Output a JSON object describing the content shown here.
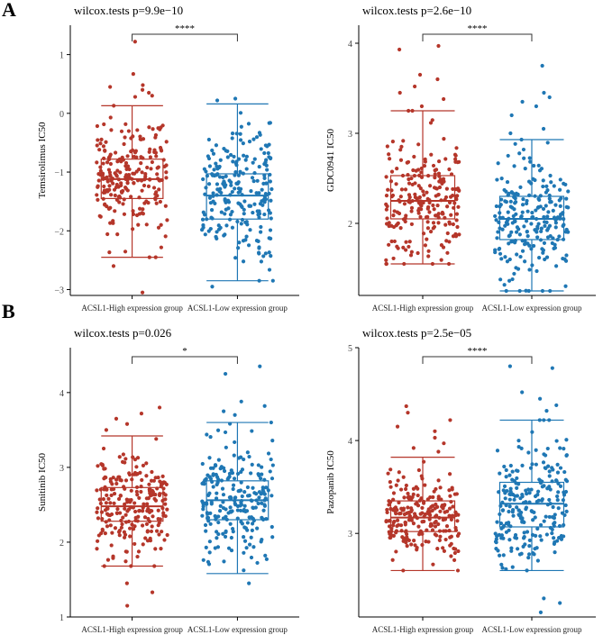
{
  "panel_letters": [
    "A",
    "B"
  ],
  "colors": {
    "high": "#B5362A",
    "low": "#1F77B4",
    "axis": "#000000"
  },
  "chart_data": [
    {
      "type": "box",
      "panel": "A",
      "title": "wilcox.tests p=9.9e−10",
      "ylabel": "Temsirolimus IC50",
      "significance": "****",
      "categories": [
        "ACSL1-High expression group",
        "ACSL1-Low expression group"
      ],
      "ylim": [
        -3.1,
        1.5
      ],
      "yticks": [
        -3,
        -2,
        -1,
        0,
        1
      ],
      "boxes": [
        {
          "min": -2.45,
          "q1": -1.45,
          "median": -1.12,
          "q3": -0.78,
          "max": 0.13
        },
        {
          "min": -2.85,
          "q1": -1.8,
          "median": -1.4,
          "q3": -1.03,
          "max": 0.16
        }
      ],
      "outliers": [
        [
          1.22,
          0.67,
          0.48,
          0.45,
          0.4,
          0.35,
          0.3,
          0.28,
          -2.6,
          -3.05
        ],
        [
          0.25,
          0.22,
          -2.95
        ]
      ]
    },
    {
      "type": "box",
      "panel": "A",
      "title": "wilcox.tests p=2.6e−10",
      "ylabel": "GDC0941 IC50",
      "significance": "****",
      "categories": [
        "ACSL1-High expression group",
        "ACSL1-Low expression group"
      ],
      "ylim": [
        1.2,
        4.2
      ],
      "yticks": [
        2,
        3,
        4
      ],
      "boxes": [
        {
          "min": 1.55,
          "q1": 2.05,
          "median": 2.25,
          "q3": 2.53,
          "max": 3.25
        },
        {
          "min": 1.25,
          "q1": 1.82,
          "median": 2.05,
          "q3": 2.3,
          "max": 2.93
        }
      ],
      "outliers": [
        [
          3.97,
          3.93,
          3.65,
          3.6,
          3.52,
          3.45,
          3.38,
          3.3
        ],
        [
          3.75,
          3.45,
          3.4,
          3.35,
          3.3,
          3.2,
          3.05,
          3.0
        ]
      ]
    },
    {
      "type": "box",
      "panel": "B",
      "title": "wilcox.tests p=0.026",
      "ylabel": "Sunitinib IC50",
      "significance": "*",
      "categories": [
        "ACSL1-High expression group",
        "ACSL1-Low expression group"
      ],
      "ylim": [
        1.0,
        4.6
      ],
      "yticks": [
        1,
        2,
        3,
        4
      ],
      "boxes": [
        {
          "min": 1.68,
          "q1": 2.28,
          "median": 2.48,
          "q3": 2.73,
          "max": 3.42
        },
        {
          "min": 1.58,
          "q1": 2.3,
          "median": 2.56,
          "q3": 2.82,
          "max": 3.6
        }
      ],
      "outliers": [
        [
          3.8,
          3.72,
          3.65,
          3.58,
          3.5,
          1.45,
          1.33,
          1.15
        ],
        [
          4.35,
          4.25,
          3.88,
          3.82,
          3.75,
          3.7,
          1.45
        ]
      ]
    },
    {
      "type": "box",
      "panel": "B",
      "title": "wilcox.tests p=2.5e−05",
      "ylabel": "Pazopanib IC50",
      "significance": "****",
      "categories": [
        "ACSL1-High expression group",
        "ACSL1-Low expression group"
      ],
      "ylim": [
        2.1,
        5.0
      ],
      "yticks": [
        3,
        4,
        5
      ],
      "boxes": [
        {
          "min": 2.6,
          "q1": 3.02,
          "median": 3.17,
          "q3": 3.35,
          "max": 3.82
        },
        {
          "min": 2.6,
          "q1": 3.07,
          "median": 3.32,
          "q3": 3.55,
          "max": 4.22
        }
      ],
      "outliers": [
        [
          4.37,
          4.3,
          4.22,
          4.15,
          4.1,
          4.03,
          3.97,
          3.92,
          3.88
        ],
        [
          4.8,
          4.78,
          4.52,
          4.45,
          4.38,
          4.32,
          2.3,
          2.25,
          2.15
        ]
      ]
    }
  ]
}
